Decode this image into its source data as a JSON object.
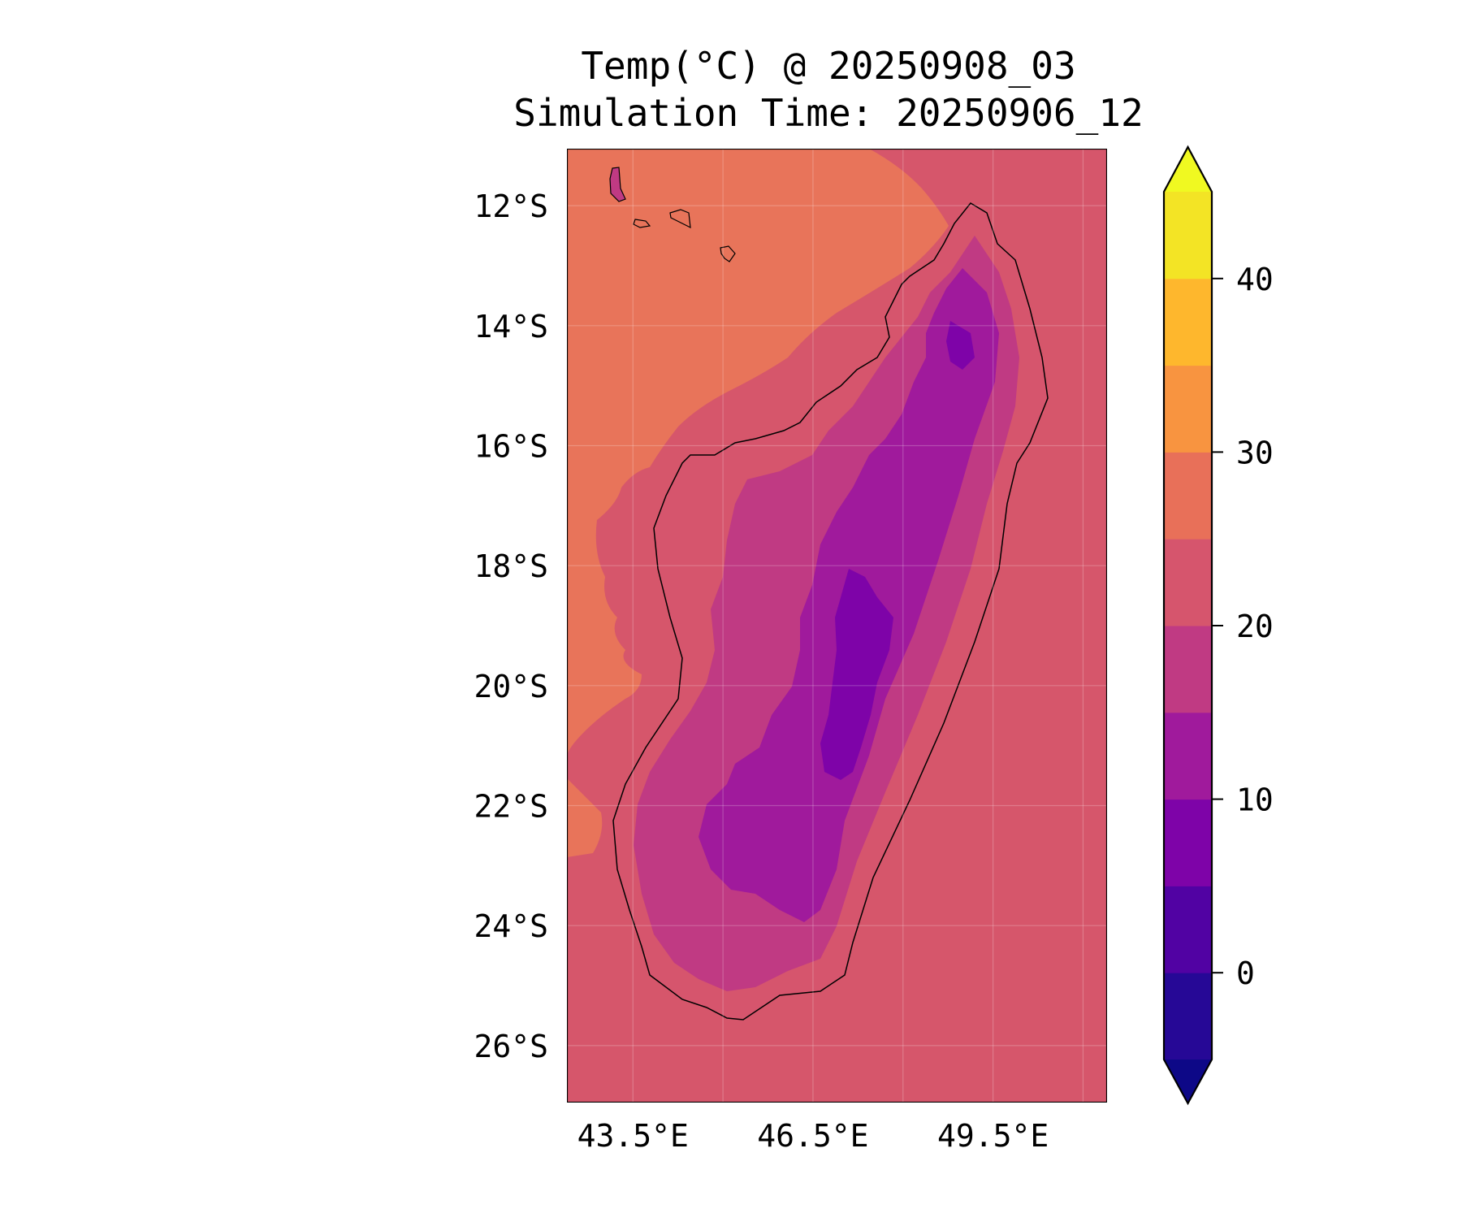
{
  "title_line1": "Temp(°C) @ 20250908_03",
  "title_line2": "Simulation Time: 20250906_12",
  "map": {
    "lon_range": [
      42.4,
      51.4
    ],
    "lat_range": [
      -26.95,
      -11.05
    ],
    "lat_ticks": [
      {
        "value": -12,
        "label": "12°S"
      },
      {
        "value": -14,
        "label": "14°S"
      },
      {
        "value": -16,
        "label": "16°S"
      },
      {
        "value": -18,
        "label": "18°S"
      },
      {
        "value": -20,
        "label": "20°S"
      },
      {
        "value": -22,
        "label": "22°S"
      },
      {
        "value": -24,
        "label": "24°S"
      },
      {
        "value": -26,
        "label": "26°S"
      }
    ],
    "lon_ticks": [
      {
        "value": 43.5,
        "label": "43.5°E"
      },
      {
        "value": 46.5,
        "label": "46.5°E"
      },
      {
        "value": 49.5,
        "label": "49.5°E"
      }
    ],
    "lon_gridlines": [
      43.5,
      45.0,
      46.5,
      48.0,
      49.5,
      51.0
    ],
    "gridlines": true,
    "ocean_east_color": "#d6566b",
    "ocean_west_color": "#e8745a"
  },
  "colorbar": {
    "min": -5,
    "max": 45,
    "extend": "both",
    "levels": [
      {
        "from": -5,
        "to": 0,
        "color": "#260896"
      },
      {
        "from": 0,
        "to": 5,
        "color": "#5102a3"
      },
      {
        "from": 5,
        "to": 10,
        "color": "#7e03a8"
      },
      {
        "from": 10,
        "to": 15,
        "color": "#a01a9c"
      },
      {
        "from": 15,
        "to": 20,
        "color": "#c03a83"
      },
      {
        "from": 20,
        "to": 25,
        "color": "#d6556d"
      },
      {
        "from": 25,
        "to": 30,
        "color": "#e87059"
      },
      {
        "from": 30,
        "to": 35,
        "color": "#f89440"
      },
      {
        "from": 35,
        "to": 40,
        "color": "#feb72d"
      },
      {
        "from": 40,
        "to": 45,
        "color": "#f3e425"
      }
    ],
    "under_color": "#0d0887",
    "over_color": "#f0f921",
    "ticks": [
      {
        "value": 0,
        "label": "0"
      },
      {
        "value": 10,
        "label": "10"
      },
      {
        "value": 20,
        "label": "20"
      },
      {
        "value": 30,
        "label": "30"
      },
      {
        "value": 40,
        "label": "40"
      }
    ]
  }
}
